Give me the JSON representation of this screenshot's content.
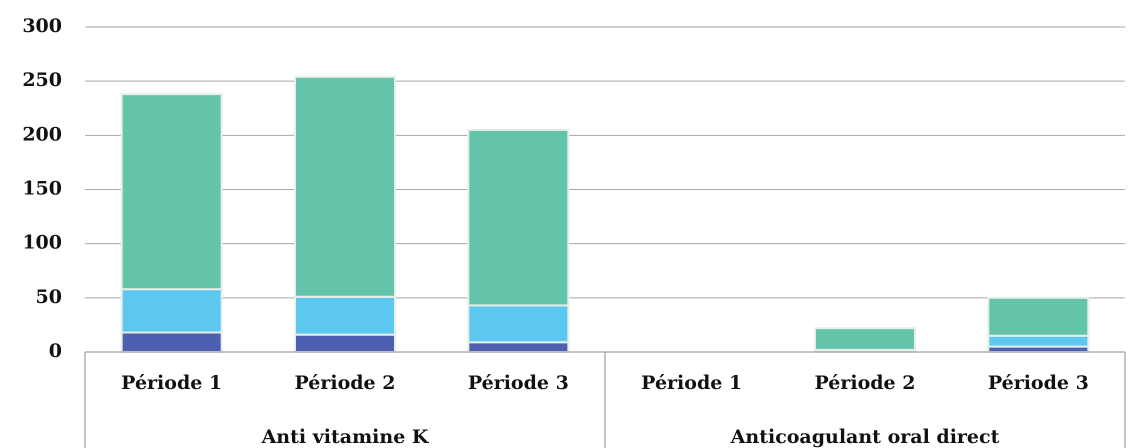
{
  "chart_data": {
    "type": "stacked-bar",
    "categories": [
      "Période 1",
      "Période 2",
      "Période 3",
      "Période 1",
      "Période 2",
      "Période 3"
    ],
    "groups": [
      "Anti vitamine K",
      "Anticoagulant oral direct"
    ],
    "series": [
      {
        "color": "#4c5fb0",
        "values": [
          18,
          16,
          9,
          0,
          0,
          5
        ]
      },
      {
        "color": "#5cc8ef",
        "values": [
          40,
          35,
          34,
          0,
          2,
          10
        ]
      },
      {
        "color": "#63c4a9",
        "values": [
          180,
          203,
          162,
          0,
          20,
          35
        ]
      }
    ],
    "ylim": [
      0,
      300
    ],
    "yticks": [
      0,
      50,
      100,
      150,
      200,
      250,
      300
    ],
    "grid": true
  }
}
